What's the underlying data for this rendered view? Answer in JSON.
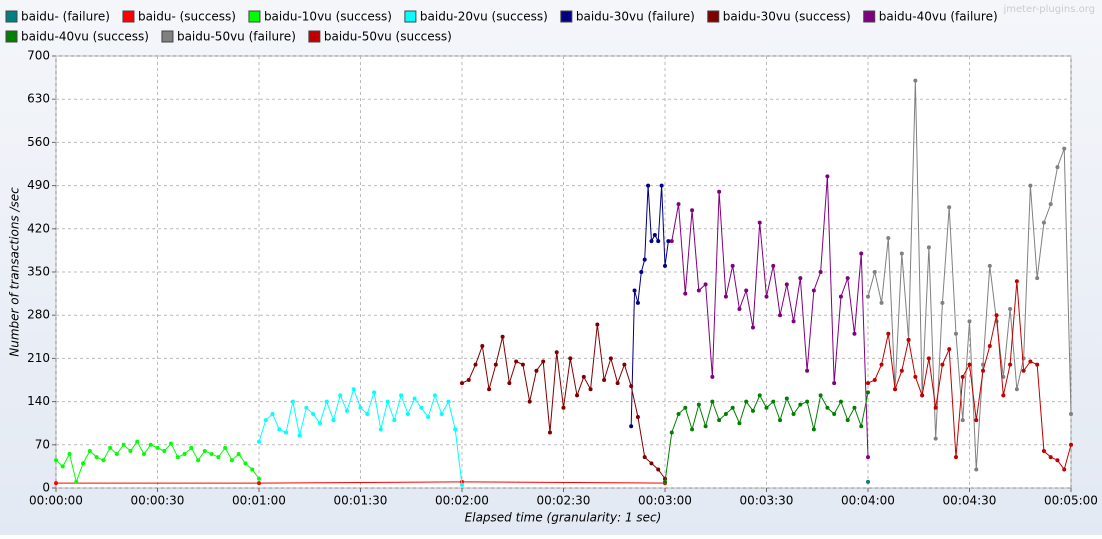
{
  "chart_data": {
    "type": "line",
    "watermark": "jmeter-plugins.org",
    "x_label": "Elapsed time (granularity: 1 sec)",
    "y_label": "Number of transactions /sec",
    "xlim": [
      0,
      300
    ],
    "xticks": [
      {
        "value": 0,
        "label": "00:00:00"
      },
      {
        "value": 30,
        "label": "00:00:30"
      },
      {
        "value": 60,
        "label": "00:01:00"
      },
      {
        "value": 90,
        "label": "00:01:30"
      },
      {
        "value": 120,
        "label": "00:02:00"
      },
      {
        "value": 150,
        "label": "00:02:30"
      },
      {
        "value": 180,
        "label": "00:03:00"
      },
      {
        "value": 210,
        "label": "00:03:30"
      },
      {
        "value": 240,
        "label": "00:04:00"
      },
      {
        "value": 270,
        "label": "00:04:30"
      },
      {
        "value": 300,
        "label": "00:05:00"
      }
    ],
    "ylim": [
      0,
      700
    ],
    "yticks": [
      0,
      70,
      140,
      210,
      280,
      350,
      420,
      490,
      560,
      630,
      700
    ],
    "grid": true,
    "legend": "top",
    "series": [
      {
        "name": "baidu- (failure)",
        "color": "#008080",
        "x": [
          240
        ],
        "values": [
          10
        ]
      },
      {
        "name": "baidu- (success)",
        "color": "#ff0000",
        "x": [
          0,
          60,
          120,
          180
        ],
        "values": [
          8,
          8,
          10,
          8
        ]
      },
      {
        "name": "baidu-10vu (success)",
        "color": "#00ff00",
        "x": [
          0,
          2,
          4,
          6,
          8,
          10,
          12,
          14,
          16,
          18,
          20,
          22,
          24,
          26,
          28,
          30,
          32,
          34,
          36,
          38,
          40,
          42,
          44,
          46,
          48,
          50,
          52,
          54,
          56,
          58,
          60
        ],
        "values": [
          45,
          35,
          55,
          10,
          40,
          60,
          50,
          45,
          65,
          55,
          70,
          60,
          75,
          55,
          70,
          65,
          60,
          72,
          50,
          55,
          65,
          45,
          60,
          55,
          50,
          65,
          45,
          55,
          40,
          30,
          15
        ]
      },
      {
        "name": "baidu-20vu (success)",
        "color": "#00ffff",
        "x": [
          60,
          62,
          64,
          66,
          68,
          70,
          72,
          74,
          76,
          78,
          80,
          82,
          84,
          86,
          88,
          90,
          92,
          94,
          96,
          98,
          100,
          102,
          104,
          106,
          108,
          110,
          112,
          114,
          116,
          118,
          120
        ],
        "values": [
          75,
          110,
          120,
          95,
          90,
          140,
          85,
          130,
          120,
          105,
          140,
          110,
          150,
          125,
          160,
          130,
          120,
          155,
          95,
          140,
          110,
          150,
          120,
          145,
          130,
          115,
          150,
          120,
          140,
          95,
          5
        ]
      },
      {
        "name": "baidu-30vu (failure)",
        "color": "#000080",
        "x": [
          170,
          171,
          172,
          173,
          174,
          175,
          176,
          177,
          178,
          179,
          180,
          181
        ],
        "values": [
          100,
          320,
          300,
          350,
          370,
          490,
          400,
          410,
          400,
          490,
          360,
          400
        ]
      },
      {
        "name": "baidu-30vu (success)",
        "color": "#800000",
        "x": [
          120,
          122,
          124,
          126,
          128,
          130,
          132,
          134,
          136,
          138,
          140,
          142,
          144,
          146,
          148,
          150,
          152,
          154,
          156,
          158,
          160,
          162,
          164,
          166,
          168,
          170,
          172,
          174,
          176,
          178,
          180
        ],
        "values": [
          170,
          175,
          200,
          230,
          160,
          200,
          245,
          170,
          205,
          200,
          140,
          190,
          205,
          90,
          220,
          130,
          210,
          150,
          180,
          160,
          265,
          175,
          210,
          170,
          200,
          165,
          115,
          50,
          40,
          30,
          15
        ]
      },
      {
        "name": "baidu-40vu (failure)",
        "color": "#800080",
        "x": [
          182,
          184,
          186,
          188,
          190,
          192,
          194,
          196,
          198,
          200,
          202,
          204,
          206,
          208,
          210,
          212,
          214,
          216,
          218,
          220,
          222,
          224,
          226,
          228,
          230,
          232,
          234,
          236,
          238,
          240
        ],
        "values": [
          400,
          460,
          315,
          450,
          320,
          330,
          180,
          480,
          310,
          360,
          290,
          320,
          260,
          430,
          310,
          360,
          280,
          330,
          270,
          340,
          190,
          320,
          350,
          505,
          170,
          310,
          340,
          250,
          380,
          50
        ]
      },
      {
        "name": "baidu-40vu (success)",
        "color": "#008000",
        "x": [
          180,
          182,
          184,
          186,
          188,
          190,
          192,
          194,
          196,
          198,
          200,
          202,
          204,
          206,
          208,
          210,
          212,
          214,
          216,
          218,
          220,
          222,
          224,
          226,
          228,
          230,
          232,
          234,
          236,
          238,
          240
        ],
        "values": [
          10,
          90,
          120,
          130,
          95,
          135,
          100,
          140,
          110,
          120,
          130,
          105,
          140,
          125,
          150,
          130,
          140,
          110,
          145,
          120,
          135,
          140,
          95,
          150,
          130,
          120,
          140,
          110,
          130,
          100,
          155
        ]
      },
      {
        "name": "baidu-50vu (failure)",
        "color": "#808080",
        "x": [
          240,
          242,
          244,
          246,
          248,
          250,
          252,
          254,
          256,
          258,
          260,
          262,
          264,
          266,
          268,
          270,
          272,
          274,
          276,
          278,
          280,
          282,
          284,
          286,
          288,
          290,
          292,
          294,
          296,
          298,
          300
        ],
        "values": [
          310,
          350,
          300,
          405,
          160,
          380,
          240,
          660,
          150,
          390,
          80,
          300,
          455,
          250,
          110,
          270,
          30,
          200,
          360,
          270,
          180,
          290,
          160,
          210,
          490,
          340,
          430,
          460,
          520,
          550,
          120
        ]
      },
      {
        "name": "baidu-50vu (success)",
        "color": "#c00000",
        "x": [
          240,
          242,
          244,
          246,
          248,
          250,
          252,
          254,
          256,
          258,
          260,
          262,
          264,
          266,
          268,
          270,
          272,
          274,
          276,
          278,
          280,
          282,
          284,
          286,
          288,
          290,
          292,
          294,
          296,
          298,
          300
        ],
        "values": [
          170,
          175,
          200,
          250,
          160,
          190,
          240,
          180,
          150,
          210,
          130,
          200,
          225,
          50,
          180,
          200,
          110,
          190,
          230,
          280,
          150,
          200,
          335,
          190,
          205,
          200,
          60,
          50,
          45,
          30,
          70
        ]
      }
    ]
  }
}
